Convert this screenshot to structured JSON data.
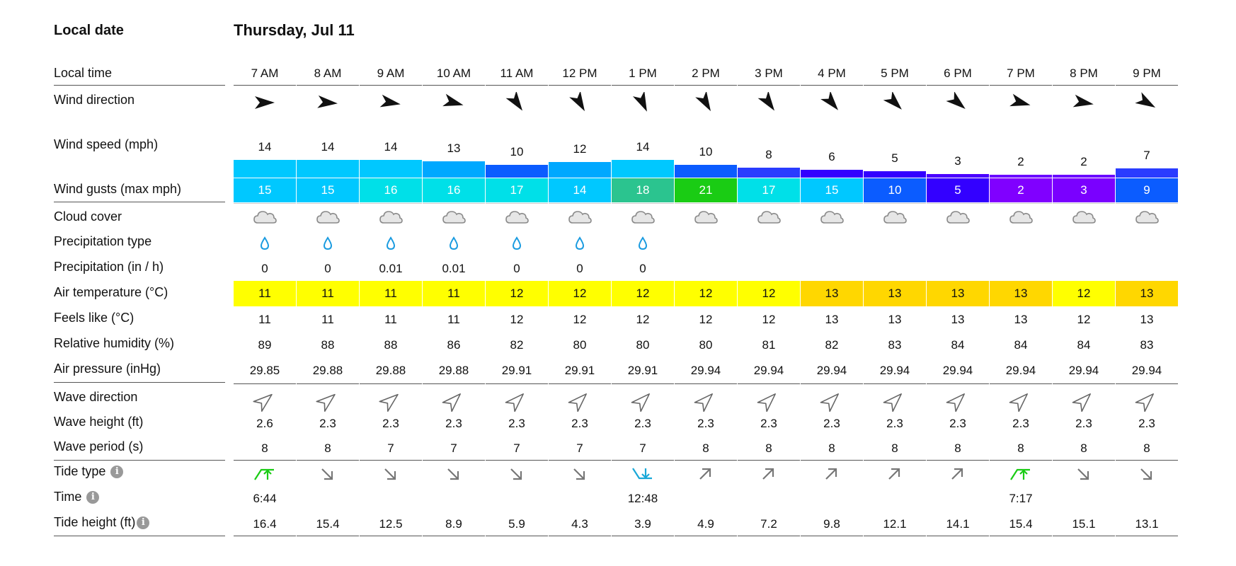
{
  "labels": {
    "local_date": "Local date",
    "local_time": "Local time",
    "wind_direction": "Wind direction",
    "wind_speed": "Wind speed (mph)",
    "wind_gusts": "Wind gusts (max mph)",
    "cloud_cover": "Cloud cover",
    "precip_type": "Precipitation type",
    "precip": "Precipitation (in / h)",
    "air_temp": "Air temperature (°C)",
    "feels_like": "Feels like (°C)",
    "humidity": "Relative humidity (%)",
    "pressure": "Air pressure (inHg)",
    "wave_direction": "Wave direction",
    "wave_height": "Wave height (ft)",
    "wave_period": "Wave period (s)",
    "tide_type": "Tide type",
    "tide_time": "Time",
    "tide_height": "Tide height (ft)"
  },
  "date": "Thursday, Jul 11",
  "info_glyph": "i",
  "hours": [
    "7 AM",
    "8 AM",
    "9 AM",
    "10 AM",
    "11 AM",
    "12 PM",
    "1 PM",
    "2 PM",
    "3 PM",
    "4 PM",
    "5 PM",
    "6 PM",
    "7 PM",
    "8 PM",
    "9 PM"
  ],
  "wind_speed": [
    "14",
    "14",
    "14",
    "13",
    "10",
    "12",
    "14",
    "10",
    "8",
    "6",
    "5",
    "3",
    "2",
    "2",
    "7"
  ],
  "wind_gusts": [
    "15",
    "15",
    "16",
    "16",
    "17",
    "14",
    "18",
    "21",
    "17",
    "15",
    "10",
    "5",
    "2",
    "3",
    "9"
  ],
  "precip_type_icon": "raindrop-icon",
  "has_precip": [
    true,
    true,
    true,
    true,
    true,
    true,
    true,
    false,
    false,
    false,
    false,
    false,
    false,
    false,
    false
  ],
  "precip": [
    "0",
    "0",
    "0.01",
    "0.01",
    "0",
    "0",
    "0",
    "",
    "",
    "",
    "",
    "",
    "",
    "",
    ""
  ],
  "air_temp": [
    "11",
    "11",
    "11",
    "11",
    "12",
    "12",
    "12",
    "12",
    "12",
    "13",
    "13",
    "13",
    "13",
    "12",
    "13"
  ],
  "feels_like": [
    "11",
    "11",
    "11",
    "11",
    "12",
    "12",
    "12",
    "12",
    "12",
    "13",
    "13",
    "13",
    "13",
    "12",
    "13"
  ],
  "humidity": [
    "89",
    "88",
    "88",
    "86",
    "82",
    "80",
    "80",
    "80",
    "81",
    "82",
    "83",
    "84",
    "84",
    "84",
    "83"
  ],
  "pressure": [
    "29.85",
    "29.88",
    "29.88",
    "29.88",
    "29.91",
    "29.91",
    "29.91",
    "29.94",
    "29.94",
    "29.94",
    "29.94",
    "29.94",
    "29.94",
    "29.94",
    "29.94"
  ],
  "wave_height": [
    "2.6",
    "2.3",
    "2.3",
    "2.3",
    "2.3",
    "2.3",
    "2.3",
    "2.3",
    "2.3",
    "2.3",
    "2.3",
    "2.3",
    "2.3",
    "2.3",
    "2.3"
  ],
  "wave_period": [
    "8",
    "8",
    "7",
    "7",
    "7",
    "7",
    "7",
    "8",
    "8",
    "8",
    "8",
    "8",
    "8",
    "8",
    "8"
  ],
  "tide_type": [
    "high",
    "falling",
    "falling",
    "falling",
    "falling",
    "falling",
    "low",
    "rising",
    "rising",
    "rising",
    "rising",
    "rising",
    "high",
    "falling",
    "falling"
  ],
  "tide_time": [
    "6:44",
    "",
    "",
    "",
    "",
    "",
    "12:48",
    "",
    "",
    "",
    "",
    "",
    "7:17",
    "",
    ""
  ],
  "tide_height": [
    "16.4",
    "15.4",
    "12.5",
    "8.9",
    "5.9",
    "4.3",
    "3.9",
    "4.9",
    "7.2",
    "9.8",
    "12.1",
    "14.1",
    "15.4",
    "15.1",
    "13.1"
  ],
  "wind_dir_deg": [
    0,
    5,
    10,
    15,
    55,
    60,
    65,
    60,
    55,
    50,
    45,
    40,
    15,
    10,
    30
  ],
  "wave_dir_deg": [
    -40,
    -40,
    -40,
    -45,
    -45,
    -45,
    -45,
    -45,
    -45,
    -45,
    -45,
    -45,
    -45,
    -45,
    -45
  ],
  "colors": {
    "gust": [
      "#00c8ff",
      "#00c8ff",
      "#00e0e8",
      "#00e0e8",
      "#00e0e8",
      "#00c8ff",
      "#2bc48f",
      "#1acc14",
      "#00e0e8",
      "#00c8ff",
      "#0b5cff",
      "#3300ff",
      "#8000ff",
      "#7a00ff",
      "#0b5cff"
    ],
    "speed": [
      "#00c8ff",
      "#00c8ff",
      "#00c8ff",
      "#00a8ff",
      "#0b5cff",
      "#00a8ff",
      "#00c8ff",
      "#0b5cff",
      "#2a3cff",
      "#3300ff",
      "#3300ff",
      "#4a00ff",
      "#6a00ff",
      "#6a00ff",
      "#2a3cff"
    ],
    "temp": [
      "#ffff00",
      "#ffff00",
      "#ffff00",
      "#ffff00",
      "#ffff00",
      "#ffff00",
      "#ffff00",
      "#ffff00",
      "#ffff00",
      "#ffd700",
      "#ffd700",
      "#ffd700",
      "#ffd700",
      "#ffff00",
      "#ffd700"
    ],
    "raindrop": "#1a9be0",
    "tide_high": "#1acc14",
    "tide_low": "#19a8d8",
    "tide_arrow": "#777777"
  }
}
